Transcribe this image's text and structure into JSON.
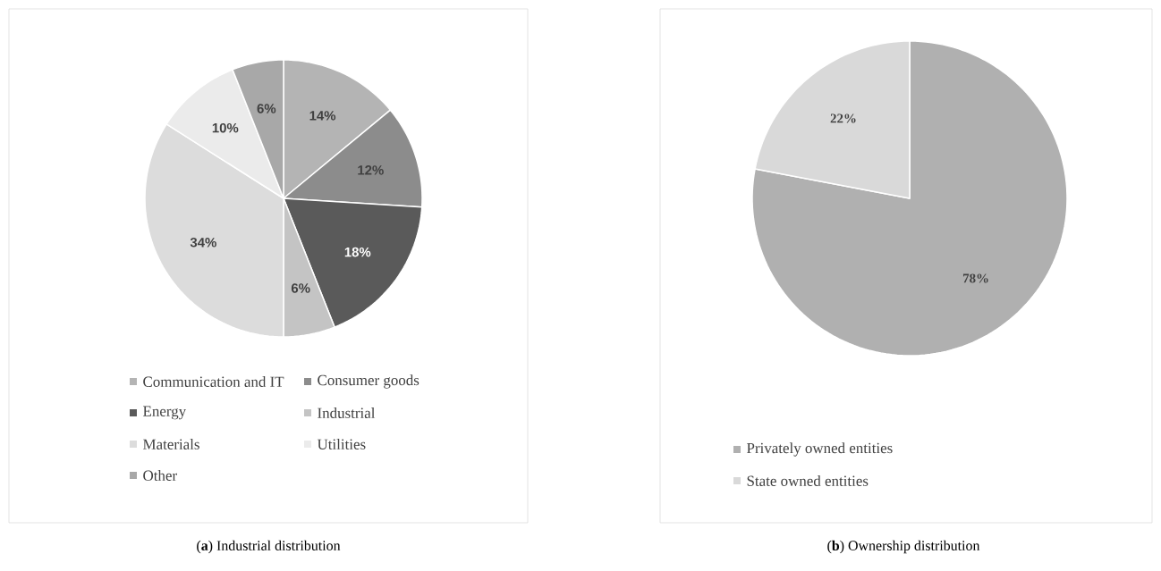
{
  "chart_data": [
    {
      "type": "pie",
      "categories": [
        "Communication and IT",
        "Consumer goods",
        "Energy",
        "Industrial",
        "Materials",
        "Utilities",
        "Other"
      ],
      "values": [
        14,
        12,
        18,
        6,
        34,
        10,
        6
      ],
      "value_labels": [
        "14%",
        "12%",
        "18%",
        "6%",
        "34%",
        "10%",
        "6%"
      ],
      "colors": [
        "#b4b4b4",
        "#8c8c8c",
        "#5a5a5a",
        "#c4c4c4",
        "#dcdcdc",
        "#ebebeb",
        "#a8a8a8"
      ],
      "legend": "bottom",
      "annotations": [
        "(**a**) Industrial distribution"
      ]
    },
    {
      "type": "pie",
      "categories": [
        "Privately owned entities",
        "State owned entities"
      ],
      "values": [
        78,
        22
      ],
      "value_labels": [
        "78%",
        "22%"
      ],
      "colors": [
        "#b0b0b0",
        "#d9d9d9"
      ],
      "legend": "bottom",
      "annotations": [
        "(**b**) Ownership distribution"
      ]
    }
  ]
}
